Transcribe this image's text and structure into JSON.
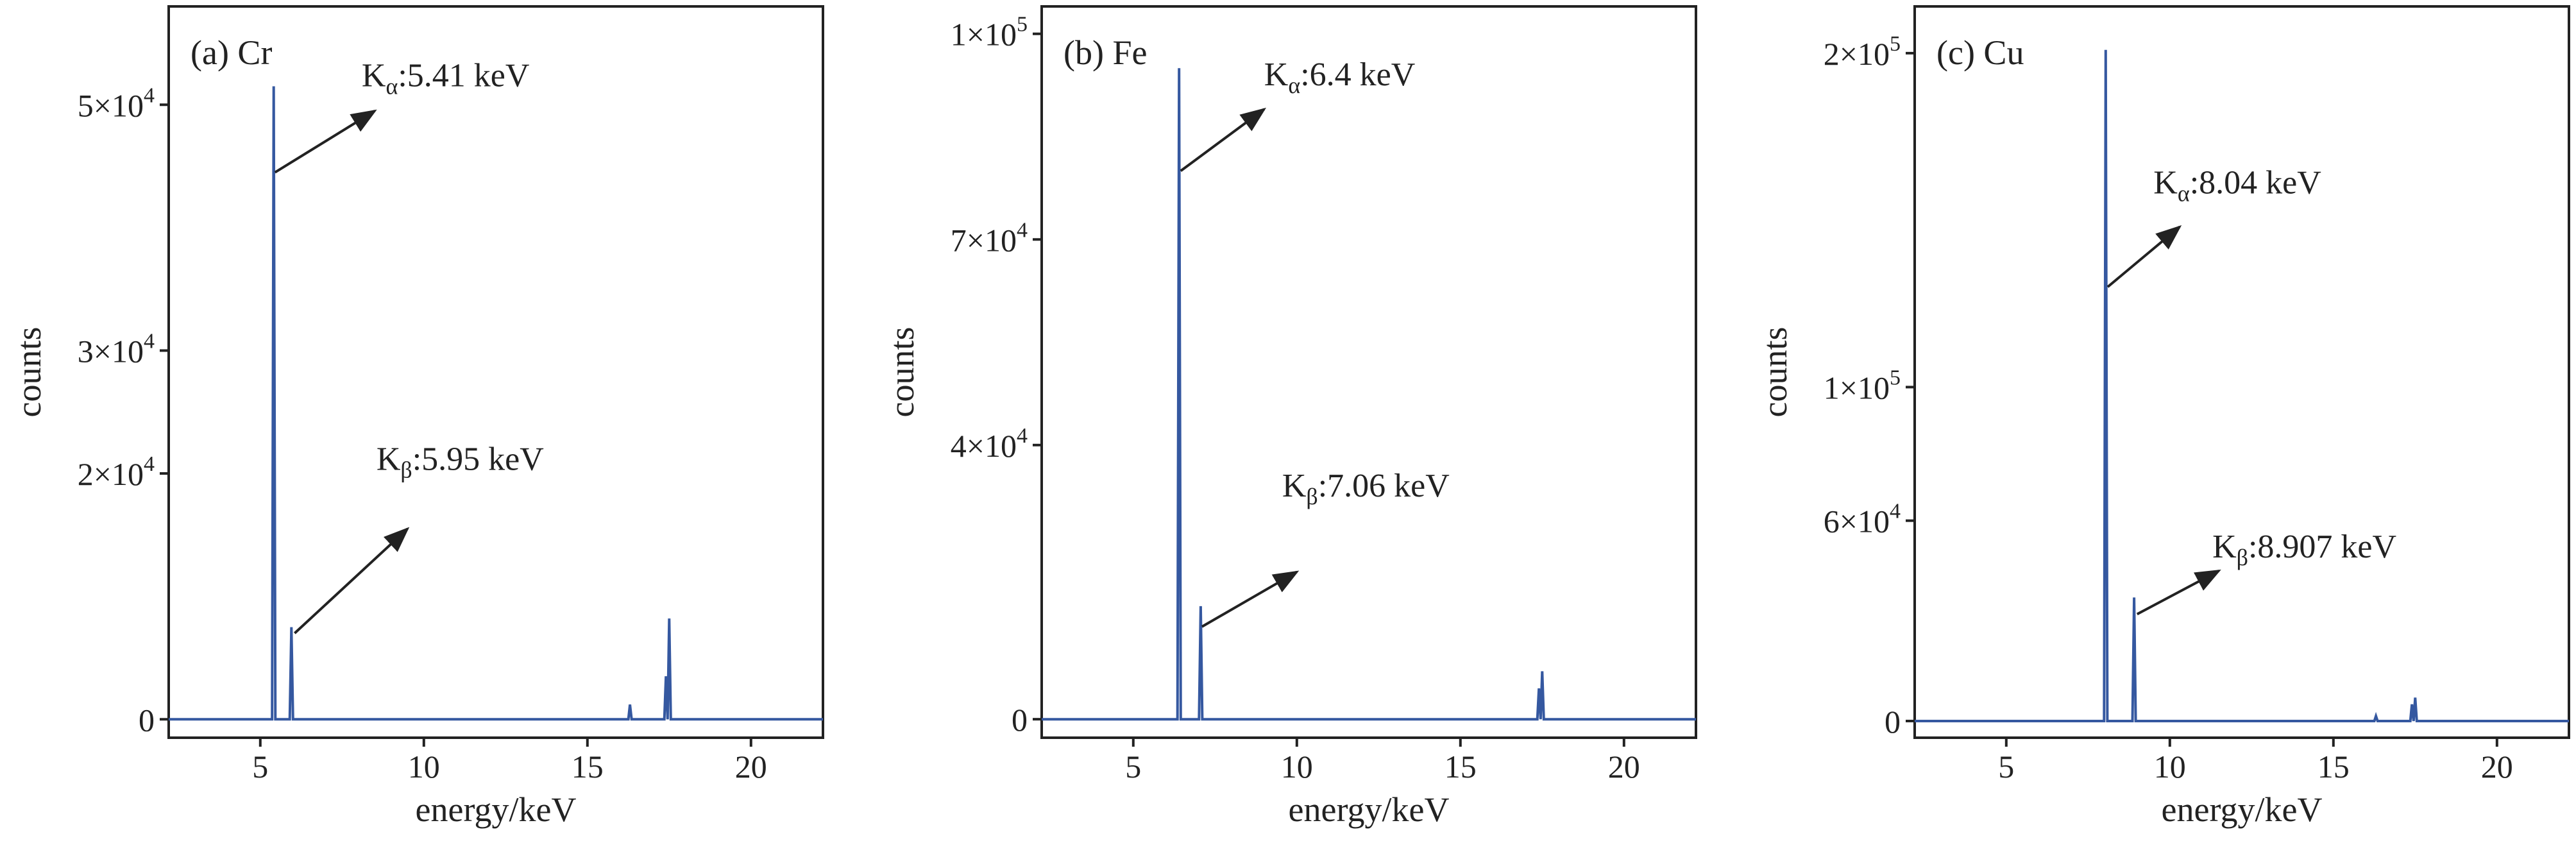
{
  "chart_data": [
    {
      "type": "line",
      "panel_label": "(a) Cr",
      "xlabel": "energy/keV",
      "ylabel": "counts",
      "xlim": [
        2.2,
        22.2
      ],
      "ylim": [
        -1500,
        58000
      ],
      "x_ticks": [
        5,
        10,
        15,
        20
      ],
      "x_tick_labels": [
        "5",
        "10",
        "15",
        "20"
      ],
      "y_ticks": [
        0,
        20000,
        30000,
        50000
      ],
      "y_tick_labels": [
        {
          "base": "0",
          "exp": ""
        },
        {
          "base": "2×10",
          "exp": "4"
        },
        {
          "base": "3×10",
          "exp": "4"
        },
        {
          "base": "5×10",
          "exp": "4"
        }
      ],
      "line_color": "#3558a0",
      "baseline": 0,
      "peaks": [
        {
          "x": 5.41,
          "y": 51500
        },
        {
          "x": 5.95,
          "y": 7500
        },
        {
          "x": 16.3,
          "y": 1200
        },
        {
          "x": 17.4,
          "y": 3500
        },
        {
          "x": 17.5,
          "y": 8200
        }
      ],
      "annotations": [
        {
          "sub": "α",
          "text": ":5.41 keV",
          "label_x": 8.1,
          "label_y": 51500,
          "arrow_from_x": 5.45,
          "arrow_from_y": 44500,
          "arrow_to_x": 8.5,
          "arrow_to_y": 49500
        },
        {
          "sub": "β",
          "text": ":5.95 keV",
          "label_x": 8.55,
          "label_y": 20300,
          "arrow_from_x": 6.05,
          "arrow_from_y": 7000,
          "arrow_to_x": 9.5,
          "arrow_to_y": 15500
        }
      ]
    },
    {
      "type": "line",
      "panel_label": "(b) Fe",
      "xlabel": "energy/keV",
      "ylabel": "counts",
      "xlim": [
        2.2,
        22.2
      ],
      "ylim": [
        -2700,
        104000
      ],
      "x_ticks": [
        5,
        10,
        15,
        20
      ],
      "x_tick_labels": [
        "5",
        "10",
        "15",
        "20"
      ],
      "y_ticks": [
        0,
        40000,
        70000,
        100000
      ],
      "y_tick_labels": [
        {
          "base": "0",
          "exp": ""
        },
        {
          "base": "4×10",
          "exp": "4"
        },
        {
          "base": "7×10",
          "exp": "4"
        },
        {
          "base": "1×10",
          "exp": "5"
        }
      ],
      "line_color": "#3558a0",
      "baseline": 0,
      "peaks": [
        {
          "x": 6.4,
          "y": 95000
        },
        {
          "x": 7.06,
          "y": 16500
        },
        {
          "x": 17.4,
          "y": 4500
        },
        {
          "x": 17.5,
          "y": 7000
        }
      ],
      "annotations": [
        {
          "sub": "α",
          "text": ":6.4 keV",
          "label_x": 9.0,
          "label_y": 92500,
          "arrow_from_x": 6.45,
          "arrow_from_y": 80000,
          "arrow_to_x": 9.0,
          "arrow_to_y": 89000
        },
        {
          "sub": "β",
          "text": ":7.06 keV",
          "label_x": 9.55,
          "label_y": 32500,
          "arrow_from_x": 7.1,
          "arrow_from_y": 13500,
          "arrow_to_x": 10.0,
          "arrow_to_y": 21500
        }
      ]
    },
    {
      "type": "line",
      "panel_label": "(c) Cu",
      "xlabel": "energy/keV",
      "ylabel": "counts",
      "xlim": [
        2.2,
        22.2
      ],
      "ylim": [
        -5000,
        214000
      ],
      "x_ticks": [
        5,
        10,
        15,
        20
      ],
      "x_tick_labels": [
        "5",
        "10",
        "15",
        "20"
      ],
      "y_ticks": [
        0,
        60000,
        100000,
        200000
      ],
      "y_tick_labels": [
        {
          "base": "0",
          "exp": ""
        },
        {
          "base": "6×10",
          "exp": "4"
        },
        {
          "base": "1×10",
          "exp": "5"
        },
        {
          "base": "2×10",
          "exp": "5"
        }
      ],
      "line_color": "#3558a0",
      "baseline": 0,
      "peaks": [
        {
          "x": 8.04,
          "y": 201000
        },
        {
          "x": 8.907,
          "y": 37000
        },
        {
          "x": 16.3,
          "y": 1500
        },
        {
          "x": 17.4,
          "y": 5000
        },
        {
          "x": 17.5,
          "y": 7000
        }
      ],
      "annotations": [
        {
          "sub": "α",
          "text": ":8.04 keV",
          "label_x": 9.5,
          "label_y": 158000,
          "arrow_from_x": 8.1,
          "arrow_from_y": 130000,
          "arrow_to_x": 10.3,
          "arrow_to_y": 148000
        },
        {
          "sub": "β",
          "text": ":8.907 keV",
          "label_x": 11.3,
          "label_y": 49000,
          "arrow_from_x": 9.0,
          "arrow_from_y": 32000,
          "arrow_to_x": 11.5,
          "arrow_to_y": 45000
        }
      ]
    }
  ]
}
